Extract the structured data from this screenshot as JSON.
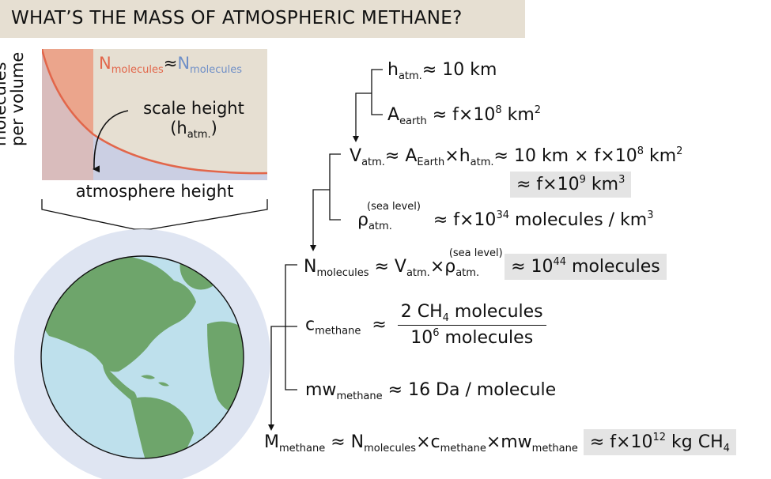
{
  "title": "WHAT’S THE MASS OF ATMOSPHERIC METHANE?",
  "colors": {
    "title_bg": "#e6dfd2",
    "panel_bg": "#e6dfd2",
    "red": "#e2664a",
    "red_fill": "#eba58c",
    "blue": "#6f8fc7",
    "blue_fill": "#cbcfe3",
    "ocean": "#bee0ec",
    "land": "#6ea56b",
    "halo": "#dfe5f2",
    "highlight": "#e4e4e4"
  },
  "graph": {
    "ylabel_line1": "molecules",
    "ylabel_line2": "per volume",
    "xlabel": "atmosphere height",
    "legend_n1": "N",
    "legend_n1_sub": "molecules",
    "legend_approx": "≈",
    "legend_n2": "N",
    "legend_n2_sub": "molecules",
    "annotation_line1": "scale height",
    "annotation_line2": "(h",
    "annotation_sub": "atm.",
    "annotation_close": ")"
  },
  "equations": {
    "h": {
      "sym": "h",
      "sub": "atm.",
      "rhs": "≈ 10 km"
    },
    "a": {
      "sym": "A",
      "sub": "earth",
      "rhs": "≈ f×10",
      "exp": "8",
      "unit": " km",
      "unit_exp": "2"
    },
    "v": {
      "sym": "V",
      "sub": "atm.",
      "mid1": "≈ A",
      "mid1_sub": "Earth",
      "mid2": "×h",
      "mid2_sub": "atm.",
      "mid3": "≈ 10 km × f×10",
      "mid3_exp": "8",
      "mid3_unit": " km",
      "mid3_unit_exp": "2"
    },
    "v_result": {
      "text": "≈ f×10",
      "exp": "9",
      "unit": " km",
      "unit_exp": "3"
    },
    "rho": {
      "sym": "ρ",
      "sup": "(sea level)",
      "sub": "atm.",
      "rhs": "≈ f×10",
      "exp": "34",
      "unit": " molecules / km",
      "unit_exp": "3"
    },
    "n": {
      "sym": "N",
      "sub": "molecules",
      "mid": "≈ V",
      "mid_sub": "atm.",
      "times": "×ρ",
      "rho_sup": "(sea level)",
      "rho_sub": "atm.",
      "result": "≈ 10",
      "result_exp": "44",
      "result_unit": " molecules"
    },
    "c": {
      "sym": "c",
      "sub": "methane",
      "approx": "≈",
      "num": "2 CH",
      "num_sub": "4",
      "num_rest": " molecules",
      "den": "10",
      "den_exp": "6",
      "den_rest": " molecules"
    },
    "mw": {
      "sym": "mw",
      "sub": "methane",
      "rhs": "≈ 16 Da / molecule"
    },
    "m": {
      "sym": "M",
      "sub": "methane",
      "a": "≈ N",
      "a_sub": "molecules",
      "b": "×c",
      "b_sub": "methane",
      "c": "×mw",
      "c_sub": "methane",
      "result": "≈ f×10",
      "result_exp": "12",
      "result_unit": " kg CH",
      "result_unit_sub": "4"
    }
  }
}
